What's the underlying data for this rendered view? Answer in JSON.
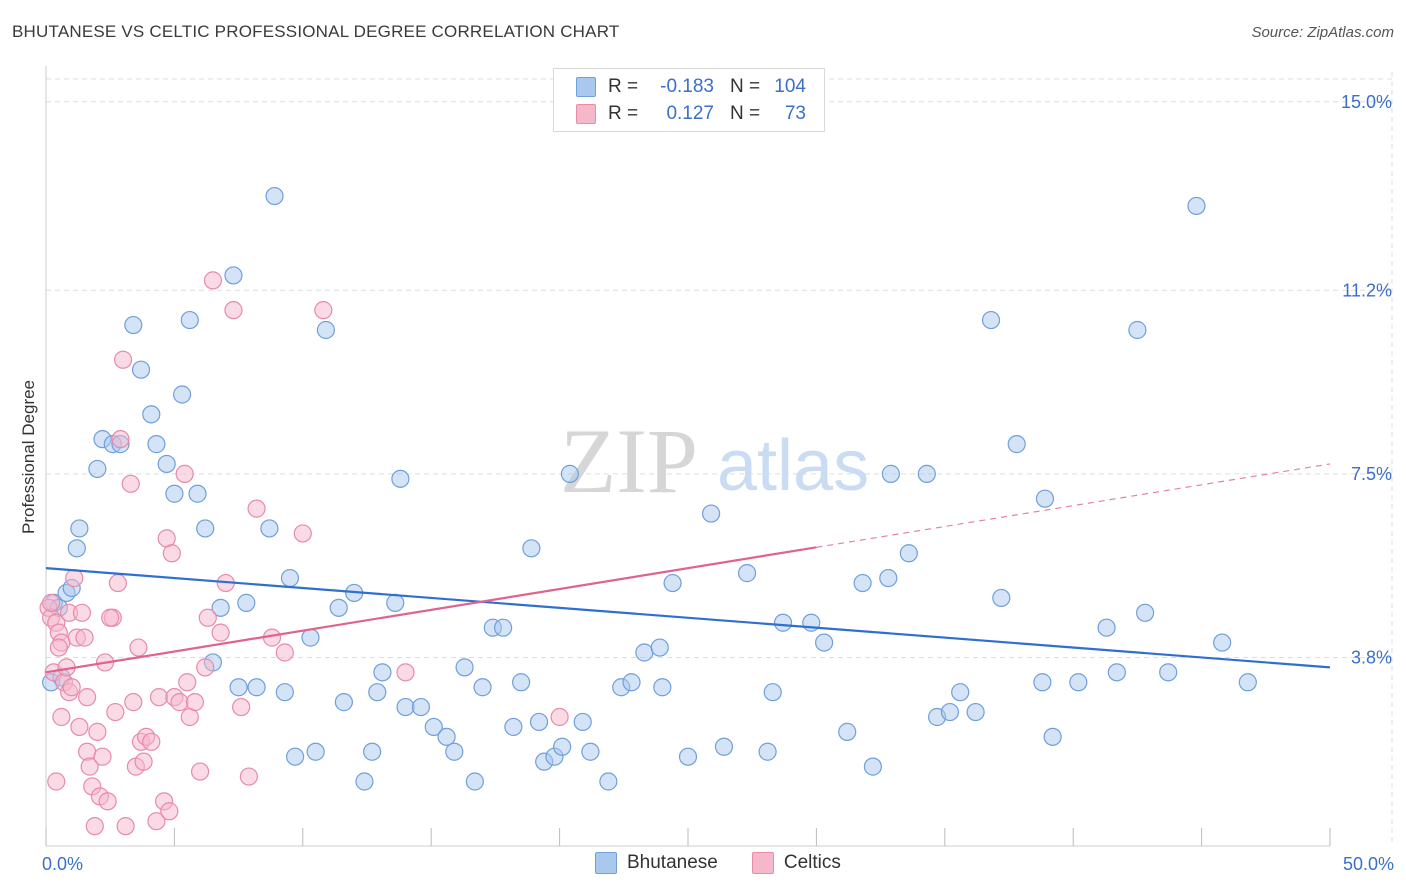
{
  "title": "BHUTANESE VS CELTIC PROFESSIONAL DEGREE CORRELATION CHART",
  "source": "Source: ZipAtlas.com",
  "watermark": {
    "zip": "ZIP",
    "atlas": "atlas"
  },
  "legend": [
    {
      "name": "Bhutanese",
      "r_label": "R =",
      "r_value": "-0.183",
      "n_label": "N =",
      "n_value": "104",
      "fill": "#a9c8ee",
      "stroke": "#6f9fdc"
    },
    {
      "name": "Celtics",
      "r_label": "R =",
      "r_value": "0.127",
      "n_label": "N =",
      "n_value": "73",
      "fill": "#f5b8cb",
      "stroke": "#e88aa8"
    }
  ],
  "colors": {
    "blue_fill": "#a9c8ee",
    "blue_stroke": "#6f9fdc",
    "blue_line": "#2f6fd0",
    "pink_fill": "#f5b8cb",
    "pink_stroke": "#e88aa8",
    "pink_line": "#e0628e",
    "grid": "#dddddd",
    "axis_label": "#3a6fcc"
  },
  "chart_data": {
    "type": "scatter",
    "title": "BHUTANESE VS CELTIC PROFESSIONAL DEGREE CORRELATION CHART",
    "xlabel": "",
    "ylabel": "Professional Degree",
    "xlim": [
      0,
      50
    ],
    "ylim": [
      0,
      15.6
    ],
    "y_ticks": [
      3.8,
      7.5,
      11.2,
      15.0
    ],
    "y_tick_labels": [
      "3.8%",
      "7.5%",
      "11.2%",
      "15.0%"
    ],
    "x_tick_labels": [
      "0.0%",
      "50.0%"
    ],
    "series": [
      {
        "name": "Bhutanese",
        "trend": {
          "x0": 0,
          "y0": 5.6,
          "x1": 50,
          "y1": 3.6,
          "dashed_from": null
        },
        "points": [
          [
            0.2,
            3.3
          ],
          [
            0.3,
            4.9
          ],
          [
            0.5,
            4.8
          ],
          [
            0.6,
            3.4
          ],
          [
            0.8,
            5.1
          ],
          [
            1.0,
            5.2
          ],
          [
            1.2,
            6.0
          ],
          [
            1.3,
            6.4
          ],
          [
            2.0,
            7.6
          ],
          [
            2.2,
            8.2
          ],
          [
            2.6,
            8.1
          ],
          [
            2.9,
            8.1
          ],
          [
            3.4,
            10.5
          ],
          [
            3.7,
            9.6
          ],
          [
            4.1,
            8.7
          ],
          [
            4.3,
            8.1
          ],
          [
            4.7,
            7.7
          ],
          [
            5.0,
            7.1
          ],
          [
            5.3,
            9.1
          ],
          [
            5.6,
            10.6
          ],
          [
            5.9,
            7.1
          ],
          [
            6.2,
            6.4
          ],
          [
            6.5,
            3.7
          ],
          [
            6.8,
            4.8
          ],
          [
            7.3,
            11.5
          ],
          [
            7.5,
            3.2
          ],
          [
            7.8,
            4.9
          ],
          [
            8.2,
            3.2
          ],
          [
            8.7,
            6.4
          ],
          [
            8.9,
            13.1
          ],
          [
            9.3,
            3.1
          ],
          [
            9.5,
            5.4
          ],
          [
            9.7,
            1.8
          ],
          [
            10.3,
            4.2
          ],
          [
            10.5,
            1.9
          ],
          [
            10.9,
            10.4
          ],
          [
            11.4,
            4.8
          ],
          [
            11.6,
            2.9
          ],
          [
            12.0,
            5.1
          ],
          [
            12.4,
            1.3
          ],
          [
            12.7,
            1.9
          ],
          [
            12.9,
            3.1
          ],
          [
            13.1,
            3.5
          ],
          [
            13.6,
            4.9
          ],
          [
            13.8,
            7.4
          ],
          [
            14.0,
            2.8
          ],
          [
            14.6,
            2.8
          ],
          [
            15.1,
            2.4
          ],
          [
            15.6,
            2.2
          ],
          [
            15.9,
            1.9
          ],
          [
            16.3,
            3.6
          ],
          [
            16.7,
            1.3
          ],
          [
            17.0,
            3.2
          ],
          [
            17.4,
            4.4
          ],
          [
            17.8,
            4.4
          ],
          [
            18.2,
            2.4
          ],
          [
            18.5,
            3.3
          ],
          [
            18.9,
            6.0
          ],
          [
            19.2,
            2.5
          ],
          [
            19.4,
            1.7
          ],
          [
            19.8,
            1.8
          ],
          [
            20.1,
            2.0
          ],
          [
            20.4,
            7.5
          ],
          [
            20.9,
            2.5
          ],
          [
            21.2,
            1.9
          ],
          [
            21.9,
            1.3
          ],
          [
            22.4,
            3.2
          ],
          [
            22.8,
            3.3
          ],
          [
            23.3,
            3.9
          ],
          [
            23.9,
            4.0
          ],
          [
            24.0,
            3.2
          ],
          [
            24.4,
            5.3
          ],
          [
            25.0,
            1.8
          ],
          [
            25.9,
            6.7
          ],
          [
            26.4,
            2.0
          ],
          [
            27.3,
            5.5
          ],
          [
            28.1,
            1.9
          ],
          [
            28.3,
            3.1
          ],
          [
            28.7,
            4.5
          ],
          [
            29.8,
            4.5
          ],
          [
            30.3,
            4.1
          ],
          [
            31.2,
            2.3
          ],
          [
            31.8,
            5.3
          ],
          [
            32.2,
            1.6
          ],
          [
            32.8,
            5.4
          ],
          [
            32.9,
            7.5
          ],
          [
            33.6,
            5.9
          ],
          [
            34.3,
            7.5
          ],
          [
            34.7,
            2.6
          ],
          [
            35.2,
            2.7
          ],
          [
            35.6,
            3.1
          ],
          [
            36.2,
            2.7
          ],
          [
            36.8,
            10.6
          ],
          [
            37.2,
            5.0
          ],
          [
            37.8,
            8.1
          ],
          [
            38.8,
            3.3
          ],
          [
            38.9,
            7.0
          ],
          [
            39.2,
            2.2
          ],
          [
            40.2,
            3.3
          ],
          [
            41.3,
            4.4
          ],
          [
            41.7,
            3.5
          ],
          [
            42.5,
            10.4
          ],
          [
            42.8,
            4.7
          ],
          [
            43.7,
            3.5
          ],
          [
            44.8,
            12.9
          ],
          [
            45.8,
            4.1
          ],
          [
            46.8,
            3.3
          ]
        ]
      },
      {
        "name": "Celtics",
        "trend": {
          "x0": 0,
          "y0": 3.5,
          "x1": 50,
          "y1": 7.7,
          "dashed_from": 30
        },
        "points": [
          [
            0.1,
            4.8
          ],
          [
            0.2,
            4.6
          ],
          [
            0.3,
            3.5
          ],
          [
            0.4,
            4.5
          ],
          [
            0.5,
            4.3
          ],
          [
            0.6,
            4.1
          ],
          [
            0.7,
            3.3
          ],
          [
            0.8,
            3.6
          ],
          [
            0.9,
            3.1
          ],
          [
            0.9,
            4.7
          ],
          [
            1.1,
            5.4
          ],
          [
            1.2,
            4.2
          ],
          [
            1.3,
            2.4
          ],
          [
            1.4,
            4.7
          ],
          [
            1.5,
            4.2
          ],
          [
            1.6,
            1.9
          ],
          [
            1.7,
            1.6
          ],
          [
            1.8,
            1.2
          ],
          [
            1.9,
            0.4
          ],
          [
            2.0,
            2.3
          ],
          [
            2.1,
            1.0
          ],
          [
            2.2,
            1.8
          ],
          [
            2.4,
            0.9
          ],
          [
            2.6,
            4.6
          ],
          [
            2.7,
            2.7
          ],
          [
            2.8,
            5.3
          ],
          [
            2.9,
            8.2
          ],
          [
            3.0,
            9.8
          ],
          [
            3.1,
            0.4
          ],
          [
            3.3,
            7.3
          ],
          [
            3.4,
            2.9
          ],
          [
            3.5,
            1.6
          ],
          [
            3.7,
            2.1
          ],
          [
            3.8,
            1.7
          ],
          [
            3.9,
            2.2
          ],
          [
            4.1,
            2.1
          ],
          [
            4.3,
            0.5
          ],
          [
            4.4,
            3.0
          ],
          [
            4.6,
            0.9
          ],
          [
            4.7,
            6.2
          ],
          [
            4.8,
            0.7
          ],
          [
            5.0,
            3.0
          ],
          [
            5.2,
            2.9
          ],
          [
            5.4,
            7.5
          ],
          [
            5.6,
            2.6
          ],
          [
            5.8,
            2.9
          ],
          [
            6.0,
            1.5
          ],
          [
            6.2,
            3.6
          ],
          [
            6.5,
            11.4
          ],
          [
            6.8,
            4.3
          ],
          [
            7.0,
            5.3
          ],
          [
            7.3,
            10.8
          ],
          [
            7.6,
            2.8
          ],
          [
            7.9,
            1.4
          ],
          [
            8.2,
            6.8
          ],
          [
            8.8,
            4.2
          ],
          [
            9.3,
            3.9
          ],
          [
            10.0,
            6.3
          ],
          [
            10.8,
            10.8
          ],
          [
            14.0,
            3.5
          ],
          [
            20.0,
            2.6
          ],
          [
            0.4,
            1.3
          ],
          [
            0.6,
            2.6
          ],
          [
            1.0,
            3.2
          ],
          [
            2.5,
            4.6
          ],
          [
            3.6,
            4.0
          ],
          [
            4.9,
            5.9
          ],
          [
            6.3,
            4.6
          ],
          [
            0.2,
            4.9
          ],
          [
            0.5,
            4.0
          ],
          [
            1.6,
            3.0
          ],
          [
            2.3,
            3.7
          ],
          [
            5.5,
            3.3
          ]
        ]
      }
    ]
  }
}
